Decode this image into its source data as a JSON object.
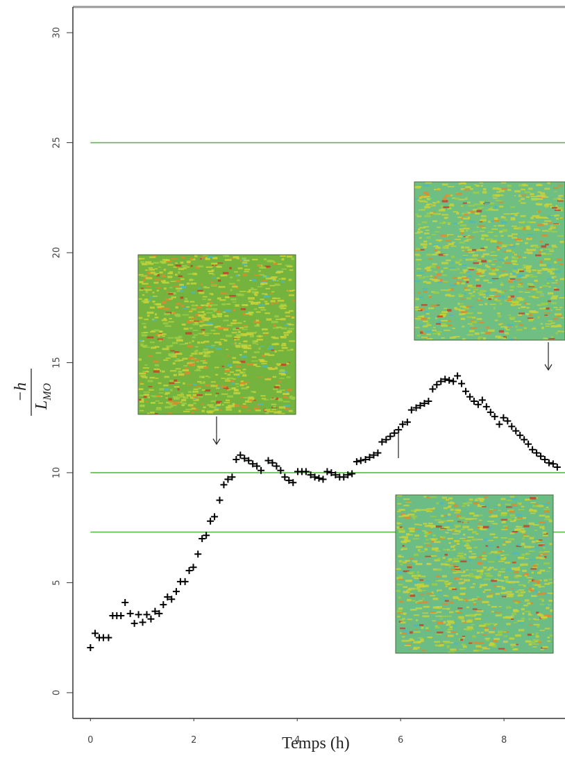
{
  "chart_data": {
    "type": "scatter",
    "xlabel": "Temps (h)",
    "ylabel": {
      "numerator": "−h",
      "denominator": "L",
      "denominator_subscript": "MO"
    },
    "marker": "+",
    "color": "#000000",
    "hlines": [
      25,
      10,
      7.3
    ],
    "hline_color": "#5bb84a",
    "xlim": [
      -0.34,
      9.18
    ],
    "ylim": [
      -1.17,
      31.17
    ],
    "xticks": [
      0,
      2,
      4,
      6,
      8
    ],
    "yticks": [
      0,
      5,
      10,
      15,
      20,
      25,
      30
    ],
    "x": [
      0,
      0.09,
      0.17,
      0.25,
      0.35,
      0.43,
      0.51,
      0.59,
      0.67,
      0.77,
      0.85,
      0.93,
      1.01,
      1.09,
      1.17,
      1.25,
      1.33,
      1.41,
      1.49,
      1.57,
      1.66,
      1.74,
      1.83,
      1.91,
      1.99,
      2.08,
      2.16,
      2.24,
      2.32,
      2.4,
      2.5,
      2.58,
      2.66,
      2.74,
      2.82,
      2.9,
      2.98,
      3.06,
      3.14,
      3.22,
      3.3,
      3.44,
      3.52,
      3.6,
      3.68,
      3.76,
      3.84,
      3.92,
      4.01,
      4.09,
      4.17,
      4.26,
      4.34,
      4.42,
      4.5,
      4.58,
      4.66,
      4.74,
      4.82,
      4.9,
      4.98,
      5.06,
      5.15,
      5.23,
      5.32,
      5.4,
      5.48,
      5.56,
      5.64,
      5.72,
      5.8,
      5.88,
      5.96,
      6.04,
      6.13,
      6.21,
      6.3,
      6.38,
      6.46,
      6.54,
      6.62,
      6.7,
      6.78,
      6.86,
      6.94,
      7.02,
      7.1,
      7.18,
      7.26,
      7.34,
      7.42,
      7.5,
      7.58,
      7.66,
      7.74,
      7.82,
      7.91,
      7.99,
      8.07,
      8.15,
      8.23,
      8.31,
      8.39,
      8.47,
      8.55,
      8.63,
      8.71,
      8.79,
      8.87,
      8.95,
      9.03
    ],
    "values": [
      2.05,
      2.7,
      2.5,
      2.5,
      2.5,
      3.5,
      3.5,
      3.5,
      4.1,
      3.6,
      3.15,
      3.55,
      3.2,
      3.55,
      3.35,
      3.7,
      3.6,
      4.0,
      4.35,
      4.25,
      4.6,
      5.05,
      5.05,
      5.55,
      5.7,
      6.3,
      7.0,
      7.15,
      7.8,
      8.0,
      8.75,
      9.45,
      9.7,
      9.8,
      10.6,
      10.8,
      10.65,
      10.55,
      10.4,
      10.3,
      10.1,
      10.55,
      10.45,
      10.3,
      10.1,
      9.8,
      9.65,
      9.55,
      10.05,
      10.05,
      10.05,
      9.9,
      9.8,
      9.75,
      9.7,
      10.05,
      10.0,
      9.9,
      9.8,
      9.8,
      9.9,
      9.95,
      10.5,
      10.55,
      10.6,
      10.7,
      10.8,
      10.9,
      11.4,
      11.5,
      11.65,
      11.8,
      11.95,
      12.2,
      12.3,
      12.85,
      12.95,
      13.05,
      13.15,
      13.25,
      13.8,
      14.0,
      14.15,
      14.25,
      14.2,
      14.15,
      14.4,
      14.05,
      13.7,
      13.45,
      13.25,
      13.1,
      13.3,
      13.0,
      12.75,
      12.55,
      12.2,
      12.5,
      12.35,
      12.1,
      11.9,
      11.7,
      11.5,
      11.3,
      11.05,
      10.9,
      10.75,
      10.6,
      10.45,
      10.4,
      10.25
    ]
  }
}
